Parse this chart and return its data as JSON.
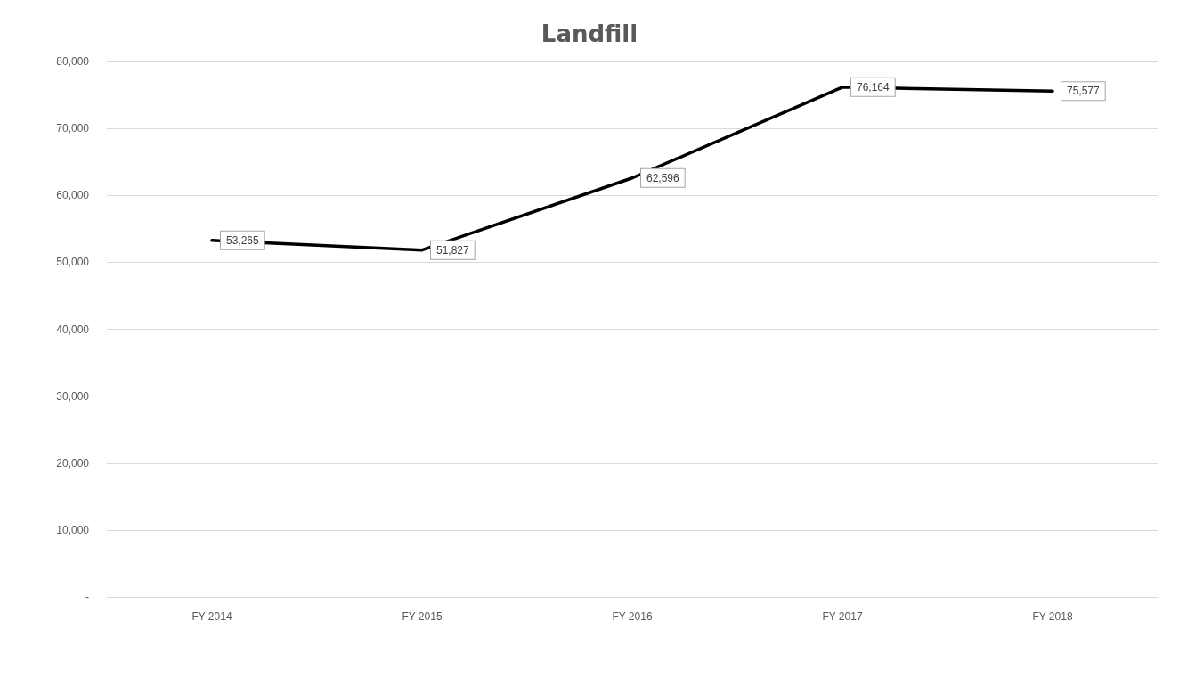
{
  "chart_data": {
    "type": "line",
    "title": "Landfill",
    "categories": [
      "FY 2014",
      "FY 2015",
      "FY 2016",
      "FY 2017",
      "FY 2018"
    ],
    "series": [
      {
        "color": "#000000",
        "values": [
          53265,
          51827,
          62596,
          76164,
          75577
        ],
        "value_labels": [
          "53,265",
          "51,827",
          "62,596",
          "76,164",
          "75,577"
        ]
      }
    ],
    "ylim": [
      0,
      80000
    ],
    "yticks": [
      {
        "value": 0,
        "label": "-"
      },
      {
        "value": 10000,
        "label": "10,000"
      },
      {
        "value": 20000,
        "label": "20,000"
      },
      {
        "value": 30000,
        "label": "30,000"
      },
      {
        "value": 40000,
        "label": "40,000"
      },
      {
        "value": 50000,
        "label": "50,000"
      },
      {
        "value": 60000,
        "label": "60,000"
      },
      {
        "value": 70000,
        "label": "70,000"
      },
      {
        "value": 80000,
        "label": "80,000"
      }
    ],
    "grid": "y",
    "marker": "none",
    "line_style": "solid"
  }
}
